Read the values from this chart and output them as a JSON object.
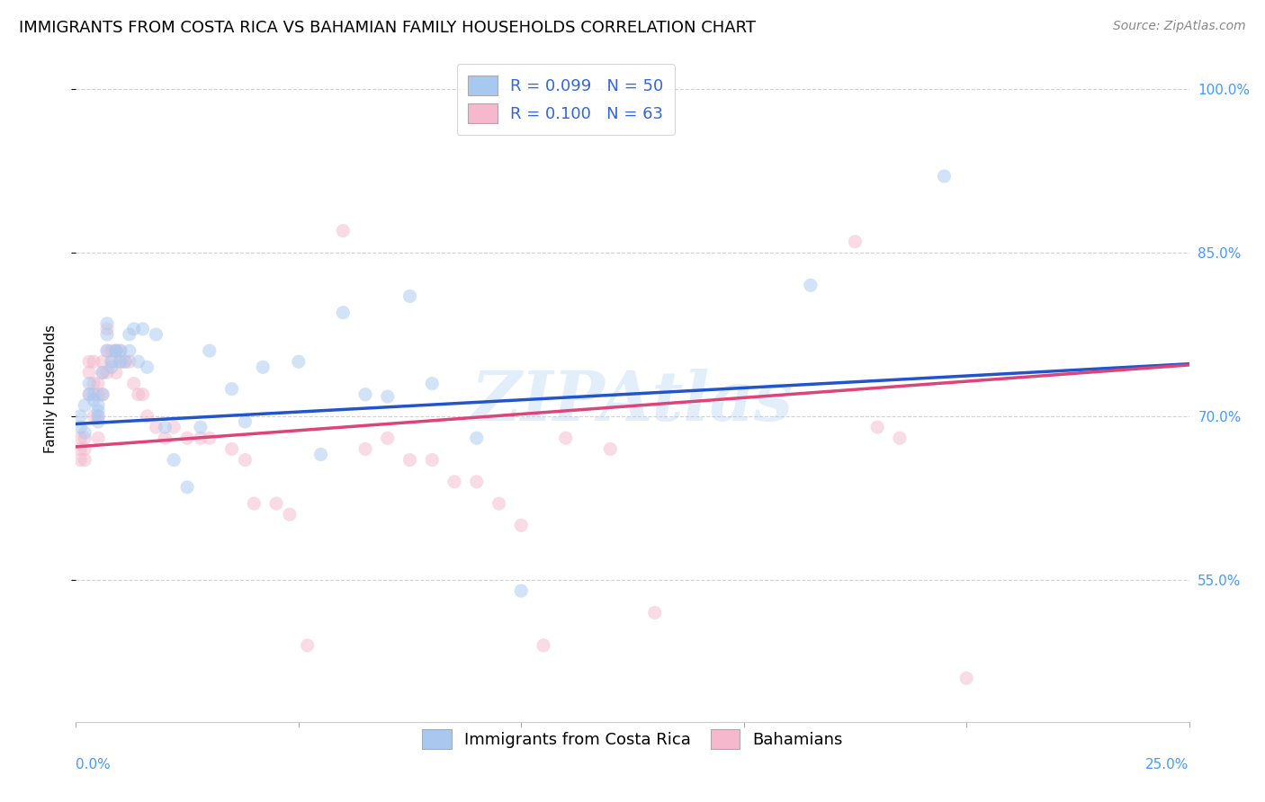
{
  "title": "IMMIGRANTS FROM COSTA RICA VS BAHAMIAN FAMILY HOUSEHOLDS CORRELATION CHART",
  "source": "Source: ZipAtlas.com",
  "ylabel": "Family Households",
  "xmin": 0.0,
  "xmax": 0.25,
  "ymin": 0.42,
  "ymax": 1.03,
  "yticks": [
    0.55,
    0.7,
    0.85,
    1.0
  ],
  "ytick_labels": [
    "55.0%",
    "70.0%",
    "85.0%",
    "100.0%"
  ],
  "xtick_positions": [
    0.0,
    0.05,
    0.1,
    0.15,
    0.2,
    0.25
  ],
  "watermark": "ZIPAtlas",
  "blue_scatter_x": [
    0.001,
    0.001,
    0.002,
    0.002,
    0.003,
    0.003,
    0.004,
    0.004,
    0.005,
    0.005,
    0.005,
    0.005,
    0.006,
    0.006,
    0.007,
    0.007,
    0.007,
    0.008,
    0.008,
    0.009,
    0.009,
    0.01,
    0.01,
    0.011,
    0.012,
    0.012,
    0.013,
    0.014,
    0.015,
    0.016,
    0.018,
    0.02,
    0.022,
    0.025,
    0.028,
    0.03,
    0.035,
    0.038,
    0.042,
    0.05,
    0.055,
    0.06,
    0.065,
    0.07,
    0.075,
    0.08,
    0.09,
    0.1,
    0.165,
    0.195
  ],
  "blue_scatter_y": [
    0.7,
    0.69,
    0.71,
    0.685,
    0.73,
    0.72,
    0.72,
    0.715,
    0.71,
    0.705,
    0.7,
    0.695,
    0.74,
    0.72,
    0.785,
    0.775,
    0.76,
    0.75,
    0.745,
    0.76,
    0.76,
    0.76,
    0.75,
    0.75,
    0.775,
    0.76,
    0.78,
    0.75,
    0.78,
    0.745,
    0.775,
    0.69,
    0.66,
    0.635,
    0.69,
    0.76,
    0.725,
    0.695,
    0.745,
    0.75,
    0.665,
    0.795,
    0.72,
    0.718,
    0.81,
    0.73,
    0.68,
    0.54,
    0.82,
    0.92
  ],
  "pink_scatter_x": [
    0.001,
    0.001,
    0.001,
    0.002,
    0.002,
    0.002,
    0.003,
    0.003,
    0.003,
    0.004,
    0.004,
    0.004,
    0.005,
    0.005,
    0.005,
    0.005,
    0.006,
    0.006,
    0.006,
    0.007,
    0.007,
    0.007,
    0.008,
    0.008,
    0.009,
    0.009,
    0.01,
    0.01,
    0.011,
    0.012,
    0.013,
    0.014,
    0.015,
    0.016,
    0.018,
    0.02,
    0.022,
    0.025,
    0.028,
    0.03,
    0.035,
    0.038,
    0.04,
    0.045,
    0.048,
    0.052,
    0.06,
    0.065,
    0.07,
    0.075,
    0.08,
    0.085,
    0.09,
    0.095,
    0.1,
    0.105,
    0.11,
    0.12,
    0.13,
    0.175,
    0.18,
    0.185,
    0.2
  ],
  "pink_scatter_y": [
    0.68,
    0.67,
    0.66,
    0.68,
    0.67,
    0.66,
    0.75,
    0.74,
    0.72,
    0.75,
    0.73,
    0.7,
    0.73,
    0.72,
    0.7,
    0.68,
    0.75,
    0.74,
    0.72,
    0.78,
    0.76,
    0.74,
    0.76,
    0.75,
    0.76,
    0.74,
    0.76,
    0.75,
    0.75,
    0.75,
    0.73,
    0.72,
    0.72,
    0.7,
    0.69,
    0.68,
    0.69,
    0.68,
    0.68,
    0.68,
    0.67,
    0.66,
    0.62,
    0.62,
    0.61,
    0.49,
    0.87,
    0.67,
    0.68,
    0.66,
    0.66,
    0.64,
    0.64,
    0.62,
    0.6,
    0.49,
    0.68,
    0.67,
    0.52,
    0.86,
    0.69,
    0.68,
    0.46
  ],
  "blue_line_x": [
    0.0,
    0.25
  ],
  "blue_line_y": [
    0.693,
    0.748
  ],
  "pink_line_x": [
    0.0,
    0.25
  ],
  "pink_line_y": [
    0.672,
    0.747
  ],
  "scatter_size": 120,
  "scatter_alpha": 0.5,
  "scatter_blue_color": "#a8c8f0",
  "scatter_pink_color": "#f5b8cc",
  "line_blue_color": "#2255cc",
  "line_pink_color": "#dd4477",
  "line_width": 2.5,
  "background_color": "#ffffff",
  "grid_color": "#cccccc",
  "title_fontsize": 13,
  "axis_fontsize": 11,
  "tick_fontsize": 11,
  "legend_fontsize": 13,
  "source_fontsize": 10
}
